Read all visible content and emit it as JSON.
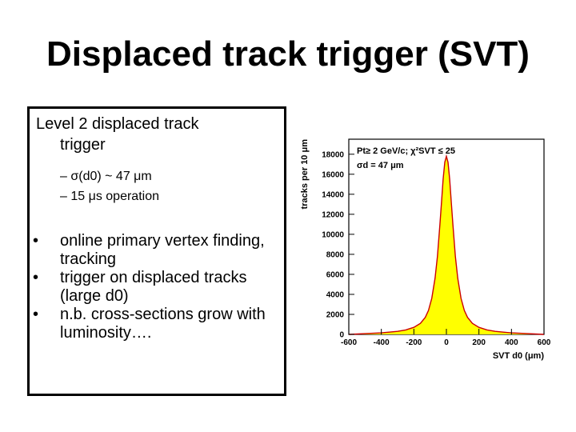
{
  "slide": {
    "title": "Displaced track trigger (SVT)",
    "heading_line1": "Level 2 displaced track",
    "heading_line2": "trigger",
    "sub_items": [
      {
        "dash": "–",
        "text": "σ(d0) ~ 47 μm"
      },
      {
        "dash": "–",
        "text": "15 μs operation"
      }
    ],
    "bullets": [
      {
        "marker": "•",
        "text": "online primary vertex finding, tracking"
      },
      {
        "marker": "•",
        "text": "trigger on displaced tracks (large d0)"
      },
      {
        "marker": "•",
        "text": "n.b. cross-sections grow with luminosity…."
      }
    ]
  },
  "chart_data": {
    "type": "area",
    "ylabel": "tracks per 10 μm",
    "xlabel": "SVT d0 (μm)",
    "xlim": [
      -600,
      600
    ],
    "ylim": [
      0,
      19500
    ],
    "x_ticks": [
      -600,
      -400,
      -200,
      0,
      200,
      400,
      600
    ],
    "y_ticks": [
      0,
      2000,
      4000,
      6000,
      8000,
      10000,
      12000,
      14000,
      16000,
      18000
    ],
    "annotation_line1": "Pt≥ 2 GeV/c; χ²SVT ≤ 25",
    "annotation_line2": "σd = 47 μm",
    "series": [
      {
        "x": [
          -600,
          -400,
          -300,
          -250,
          -200,
          -160,
          -130,
          -110,
          -90,
          -70,
          -55,
          -40,
          -30,
          -20,
          -10,
          0,
          10,
          20,
          30,
          40,
          55,
          70,
          90,
          110,
          130,
          160,
          200,
          250,
          300,
          400,
          600
        ],
        "y": [
          0,
          150,
          300,
          450,
          700,
          1100,
          1700,
          2400,
          3600,
          5600,
          7800,
          11000,
          13200,
          15500,
          17200,
          17800,
          17200,
          15500,
          13200,
          11000,
          7800,
          5600,
          3600,
          2400,
          1700,
          1100,
          700,
          450,
          300,
          150,
          0
        ]
      }
    ],
    "fill_color": "#ffff00",
    "line_color": "#cc0000",
    "grid": false
  }
}
